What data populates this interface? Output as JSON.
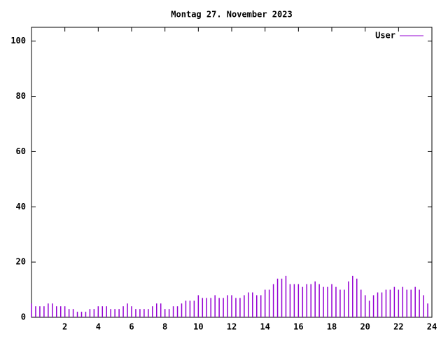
{
  "chart_data": {
    "type": "impulse",
    "title": "Montag 27. November 2023",
    "xlim": [
      0,
      24
    ],
    "xticks": [
      2,
      4,
      6,
      8,
      10,
      12,
      14,
      16,
      18,
      20,
      22,
      24
    ],
    "ylim": [
      0,
      105
    ],
    "yticks": [
      0,
      20,
      40,
      60,
      80,
      100
    ],
    "legend": "top-right",
    "x": [
      0,
      0.25,
      0.5,
      0.75,
      1,
      1.25,
      1.5,
      1.75,
      2,
      2.25,
      2.5,
      2.75,
      3,
      3.25,
      3.5,
      3.75,
      4,
      4.25,
      4.5,
      4.75,
      5,
      5.25,
      5.5,
      5.75,
      6,
      6.25,
      6.5,
      6.75,
      7,
      7.25,
      7.5,
      7.75,
      8,
      8.25,
      8.5,
      8.75,
      9,
      9.25,
      9.5,
      9.75,
      10,
      10.25,
      10.5,
      10.75,
      11,
      11.25,
      11.5,
      11.75,
      12,
      12.25,
      12.5,
      12.75,
      13,
      13.25,
      13.5,
      13.75,
      14,
      14.25,
      14.5,
      14.75,
      15,
      15.25,
      15.5,
      15.75,
      16,
      16.25,
      16.5,
      16.75,
      17,
      17.25,
      17.5,
      17.75,
      18,
      18.25,
      18.5,
      18.75,
      19,
      19.25,
      19.5,
      19.75,
      20,
      20.25,
      20.5,
      20.75,
      21,
      21.25,
      21.5,
      21.75,
      22,
      22.25,
      22.5,
      22.75,
      23,
      23.25,
      23.5,
      23.75
    ],
    "series": [
      {
        "name": "User",
        "color": "#9400d3",
        "values": [
          5,
          4,
          4,
          4,
          5,
          5,
          4,
          4,
          4,
          3,
          3,
          2,
          2,
          2,
          3,
          3,
          4,
          4,
          4,
          3,
          3,
          3,
          4,
          5,
          4,
          3,
          3,
          3,
          3,
          4,
          5,
          5,
          3,
          3,
          4,
          4,
          5,
          6,
          6,
          6,
          8,
          7,
          7,
          7,
          8,
          7,
          7,
          8,
          8,
          7,
          7,
          8,
          9,
          9,
          8,
          8,
          10,
          10,
          12,
          14,
          14,
          15,
          12,
          12,
          12,
          11,
          12,
          12,
          13,
          12,
          11,
          11,
          12,
          11,
          10,
          10,
          13,
          15,
          14,
          10,
          8,
          6,
          8,
          9,
          9,
          10,
          10,
          11,
          10,
          11,
          10,
          10,
          11,
          10,
          8,
          5
        ]
      }
    ]
  }
}
